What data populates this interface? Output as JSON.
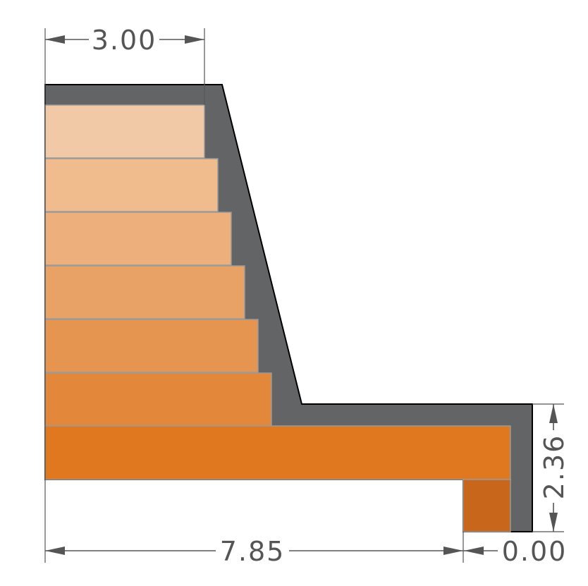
{
  "dimensions": {
    "top_width": "3.00",
    "base_length": "7.85",
    "toe_offset": "0.00",
    "footing_height": "2.36"
  },
  "colors": {
    "background": "#ffffff",
    "wall_shell": "#636466",
    "outline": "#000000",
    "dimension": "#555555",
    "layers": [
      "#F2C9A6",
      "#F0BC8E",
      "#EDAF7B",
      "#E9A265",
      "#E69550",
      "#E3883A",
      "#E07820"
    ],
    "toe_block": "#C8671C"
  }
}
